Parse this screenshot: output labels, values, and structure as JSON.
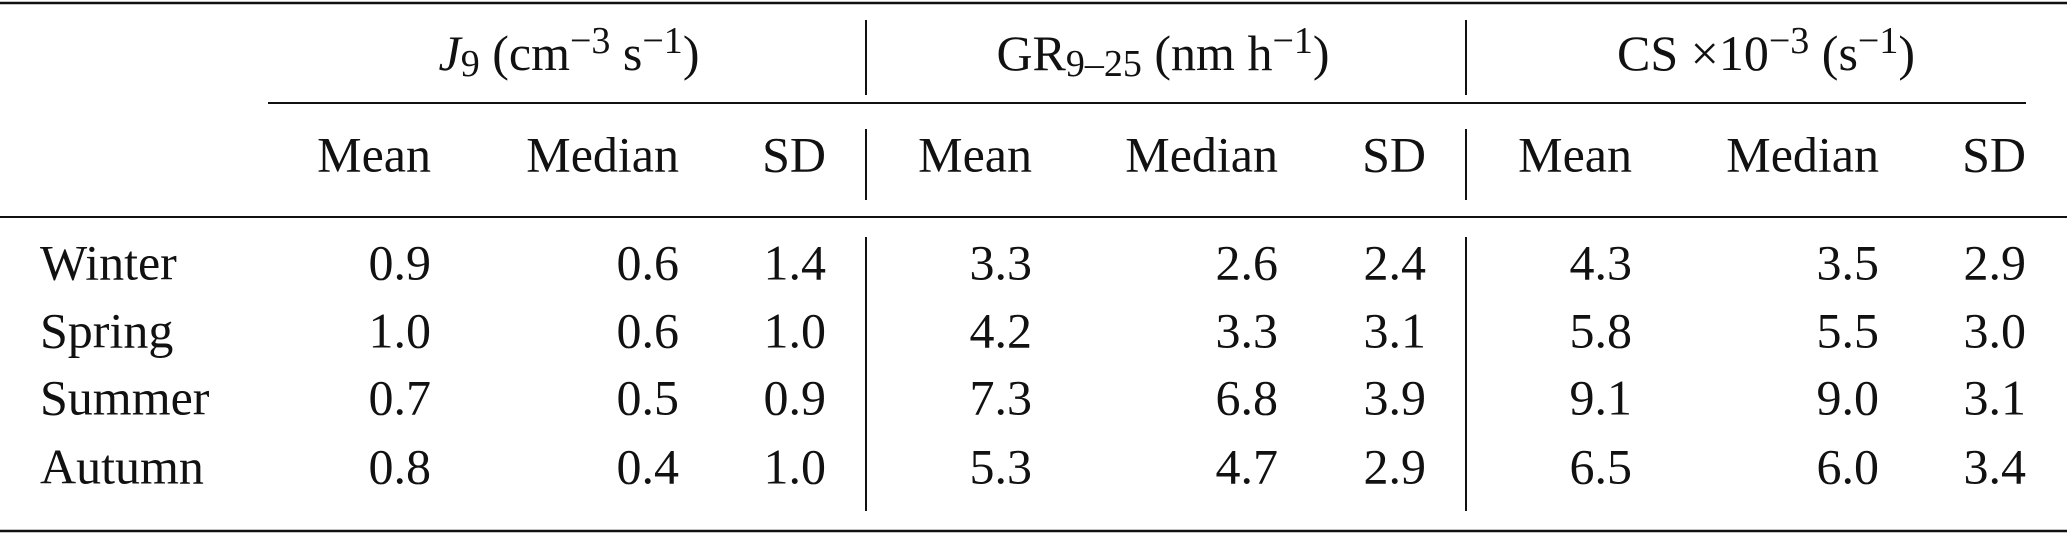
{
  "table": {
    "groups": [
      {
        "parts": [
          {
            "text": "J",
            "style": "italic"
          },
          {
            "text": "9",
            "style": "sub"
          },
          {
            "text": " (cm"
          },
          {
            "text": "−3",
            "style": "sup"
          },
          {
            "text": " s"
          },
          {
            "text": "−1",
            "style": "sup"
          },
          {
            "text": ")"
          }
        ]
      },
      {
        "parts": [
          {
            "text": "GR"
          },
          {
            "text": "9–25",
            "style": "sub"
          },
          {
            "text": " (nm h"
          },
          {
            "text": "−1",
            "style": "sup"
          },
          {
            "text": ")"
          }
        ]
      },
      {
        "parts": [
          {
            "text": "CS ×10"
          },
          {
            "text": "−3",
            "style": "sup"
          },
          {
            "text": " (s"
          },
          {
            "text": "−1",
            "style": "sup"
          },
          {
            "text": ")"
          }
        ]
      }
    ],
    "subheaders": [
      "Mean",
      "Median",
      "SD",
      "Mean",
      "Median",
      "SD",
      "Mean",
      "Median",
      "SD"
    ],
    "rows": [
      [
        "Winter",
        "0.9",
        "0.6",
        "1.4",
        "3.3",
        "2.6",
        "2.4",
        "4.3",
        "3.5",
        "2.9"
      ],
      [
        "Spring",
        "1.0",
        "0.6",
        "1.0",
        "4.2",
        "3.3",
        "3.1",
        "5.8",
        "5.5",
        "3.0"
      ],
      [
        "Summer",
        "0.7",
        "0.5",
        "0.9",
        "7.3",
        "6.8",
        "3.9",
        "9.1",
        "9.0",
        "3.1"
      ],
      [
        "Autumn",
        "0.8",
        "0.4",
        "1.0",
        "5.3",
        "4.7",
        "2.9",
        "6.5",
        "6.0",
        "3.4"
      ]
    ]
  }
}
